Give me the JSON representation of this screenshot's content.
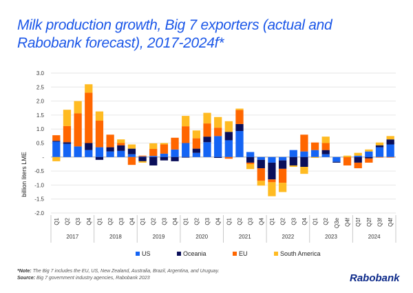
{
  "title_line1": "Milk production growth, Big 7 exporters (actual and",
  "title_line2": "Rabobank forecast), 2017-2024f*",
  "legend": [
    {
      "name": "US",
      "color": "#1464f4"
    },
    {
      "name": "Oceania",
      "color": "#0a0f5a"
    },
    {
      "name": "EU",
      "color": "#ff6600"
    },
    {
      "name": "South America",
      "color": "#ffbb22"
    }
  ],
  "footnote": {
    "note_label": "*Note:",
    "note_text": " The Big 7 includes the EU, US, New Zealand, Australia, Brazil, Argentina, and Uruguay.",
    "source_label": "Source:",
    "source_text": " Big 7 government industry agencies, Rabobank 2023"
  },
  "brand": "Rabobank",
  "chart_data": {
    "type": "bar",
    "stacked": true,
    "title": "Milk production growth, Big 7 exporters (actual and Rabobank forecast), 2017-2024f*",
    "xlabel": "",
    "ylabel": "billion liters LME",
    "ylim": [
      -2.0,
      3.0
    ],
    "yticks": [
      3.0,
      2.5,
      2.0,
      1.5,
      1.0,
      0.5,
      0,
      -0.5,
      -1.0,
      -1.5,
      -2.0
    ],
    "ytick_labels": [
      "3.0",
      "2.5",
      "2.0",
      "1.5",
      "1.0",
      "0.5",
      "-",
      "-0.5",
      "-1.0",
      "-1.5",
      "-2.0"
    ],
    "grid": true,
    "legend_position": "bottom",
    "groups": [
      {
        "year": "2017",
        "quarters": [
          "Q1",
          "Q2",
          "Q3",
          "Q4"
        ]
      },
      {
        "year": "2018",
        "quarters": [
          "Q1",
          "Q2",
          "Q3",
          "Q4"
        ]
      },
      {
        "year": "2019",
        "quarters": [
          "Q1",
          "Q2",
          "Q3",
          "Q4"
        ]
      },
      {
        "year": "2020",
        "quarters": [
          "Q1",
          "Q2",
          "Q3",
          "Q4"
        ]
      },
      {
        "year": "2021",
        "quarters": [
          "Q1",
          "Q2",
          "Q3",
          "Q4"
        ]
      },
      {
        "year": "2022",
        "quarters": [
          "Q1",
          "Q2",
          "Q3",
          "Q4"
        ]
      },
      {
        "year": "2023",
        "quarters": [
          "Q1",
          "Q2",
          "Q3e",
          "Q4f"
        ]
      },
      {
        "year": "2024",
        "quarters": [
          "Q1f",
          "Q2f",
          "Q3f",
          "Q4f"
        ]
      }
    ],
    "series": [
      {
        "name": "US",
        "color": "#1464f4",
        "values": [
          0.55,
          0.47,
          0.38,
          0.25,
          0.35,
          0.2,
          0.22,
          0.1,
          0.02,
          0.04,
          0.12,
          0.27,
          0.5,
          0.15,
          0.53,
          0.75,
          0.6,
          0.93,
          0.18,
          -0.1,
          -0.2,
          -0.12,
          0.25,
          0.2,
          0.25,
          0.1,
          -0.17,
          0.0,
          0.05,
          0.2,
          0.35,
          0.45
        ]
      },
      {
        "name": "Oceania",
        "color": "#0a0f5a",
        "values": [
          0.03,
          0.06,
          0.0,
          0.25,
          -0.1,
          0.15,
          0.2,
          0.2,
          -0.15,
          -0.3,
          -0.12,
          -0.15,
          -0.02,
          0.15,
          0.2,
          -0.03,
          0.3,
          0.25,
          -0.2,
          -0.3,
          -0.6,
          -0.3,
          -0.3,
          -0.35,
          0.0,
          0.15,
          -0.03,
          0.0,
          -0.2,
          -0.05,
          0.07,
          0.18
        ]
      },
      {
        "name": "EU",
        "color": "#ff6600",
        "values": [
          0.2,
          0.58,
          1.18,
          1.8,
          0.95,
          0.45,
          0.08,
          -0.28,
          0.03,
          0.25,
          0.33,
          0.42,
          0.6,
          0.37,
          0.47,
          0.3,
          -0.06,
          0.5,
          -0.05,
          -0.45,
          -0.1,
          -0.5,
          0.0,
          0.6,
          0.27,
          0.25,
          0.0,
          -0.3,
          -0.2,
          -0.15,
          -0.02,
          -0.02
        ]
      },
      {
        "name": "South America",
        "color": "#ffbb22",
        "values": [
          -0.15,
          0.58,
          0.44,
          0.3,
          0.33,
          0.0,
          0.13,
          0.15,
          -0.05,
          0.2,
          0.05,
          0.0,
          0.37,
          0.28,
          0.38,
          0.38,
          0.38,
          0.05,
          -0.18,
          -0.17,
          -0.5,
          -0.33,
          -0.05,
          -0.25,
          -0.03,
          0.23,
          0.0,
          0.05,
          0.1,
          0.07,
          0.1,
          0.12
        ]
      }
    ]
  }
}
